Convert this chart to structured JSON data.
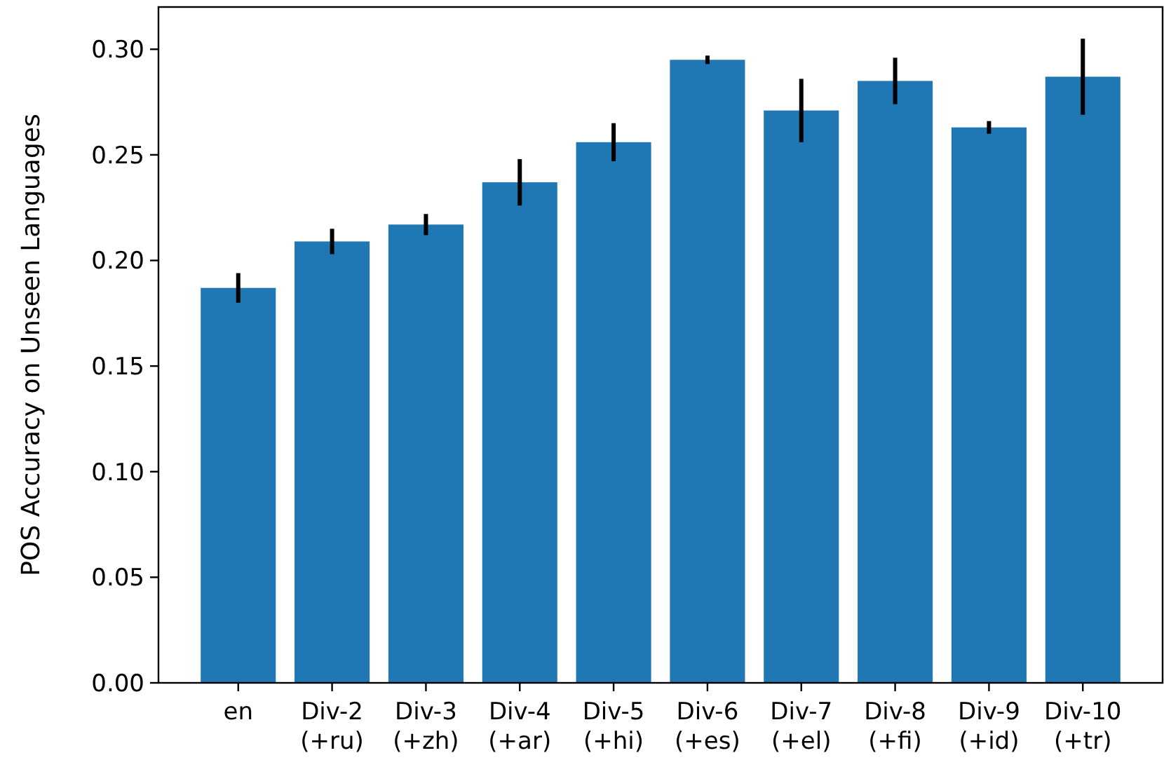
{
  "chart_data": {
    "type": "bar",
    "ylabel": "POS Accuracy on Unseen Languages",
    "categories": [
      "en",
      "Div-2 (+ru)",
      "Div-3 (+zh)",
      "Div-4 (+ar)",
      "Div-5 (+hi)",
      "Div-6 (+es)",
      "Div-7 (+el)",
      "Div-8 (+fi)",
      "Div-9 (+id)",
      "Div-10 (+tr)"
    ],
    "values": [
      0.187,
      0.209,
      0.217,
      0.237,
      0.256,
      0.295,
      0.271,
      0.285,
      0.263,
      0.287
    ],
    "errors": [
      0.007,
      0.006,
      0.005,
      0.011,
      0.009,
      0.002,
      0.015,
      0.011,
      0.003,
      0.018
    ],
    "color": "#1f77b4",
    "ylim": [
      0,
      0.32
    ],
    "yticks": [
      {
        "value": 0,
        "label": "0.00"
      },
      {
        "value": 0.05,
        "label": "0.05"
      },
      {
        "value": 0.1,
        "label": "0.10"
      },
      {
        "value": 0.15,
        "label": "0.15"
      },
      {
        "value": 0.2,
        "label": "0.20"
      },
      {
        "value": 0.25,
        "label": "0.25"
      },
      {
        "value": 0.3,
        "label": "0.30"
      }
    ],
    "grid": false
  }
}
